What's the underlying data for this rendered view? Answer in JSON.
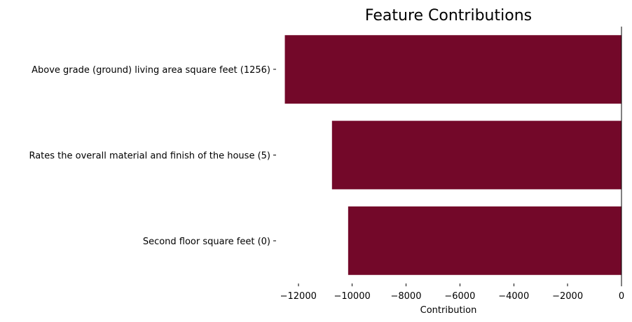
{
  "chart_data": {
    "type": "bar",
    "orientation": "horizontal",
    "title": "Feature Contributions",
    "xlabel": "Contribution",
    "ylabel": "",
    "categories": [
      "Above grade (ground) living area square feet (1256)",
      "Rates the overall material and finish of the house (5)",
      "Second floor square feet (0)"
    ],
    "values": [
      -12500,
      -10750,
      -10150
    ],
    "xlim": [
      -12800,
      0
    ],
    "xticks": [
      -12000,
      -10000,
      -8000,
      -6000,
      -4000,
      -2000,
      0
    ],
    "xtick_labels": [
      "−12000",
      "−10000",
      "−8000",
      "−6000",
      "−4000",
      "−2000",
      "0"
    ],
    "bar_color": "#730829",
    "grid": false,
    "legend": "none"
  }
}
